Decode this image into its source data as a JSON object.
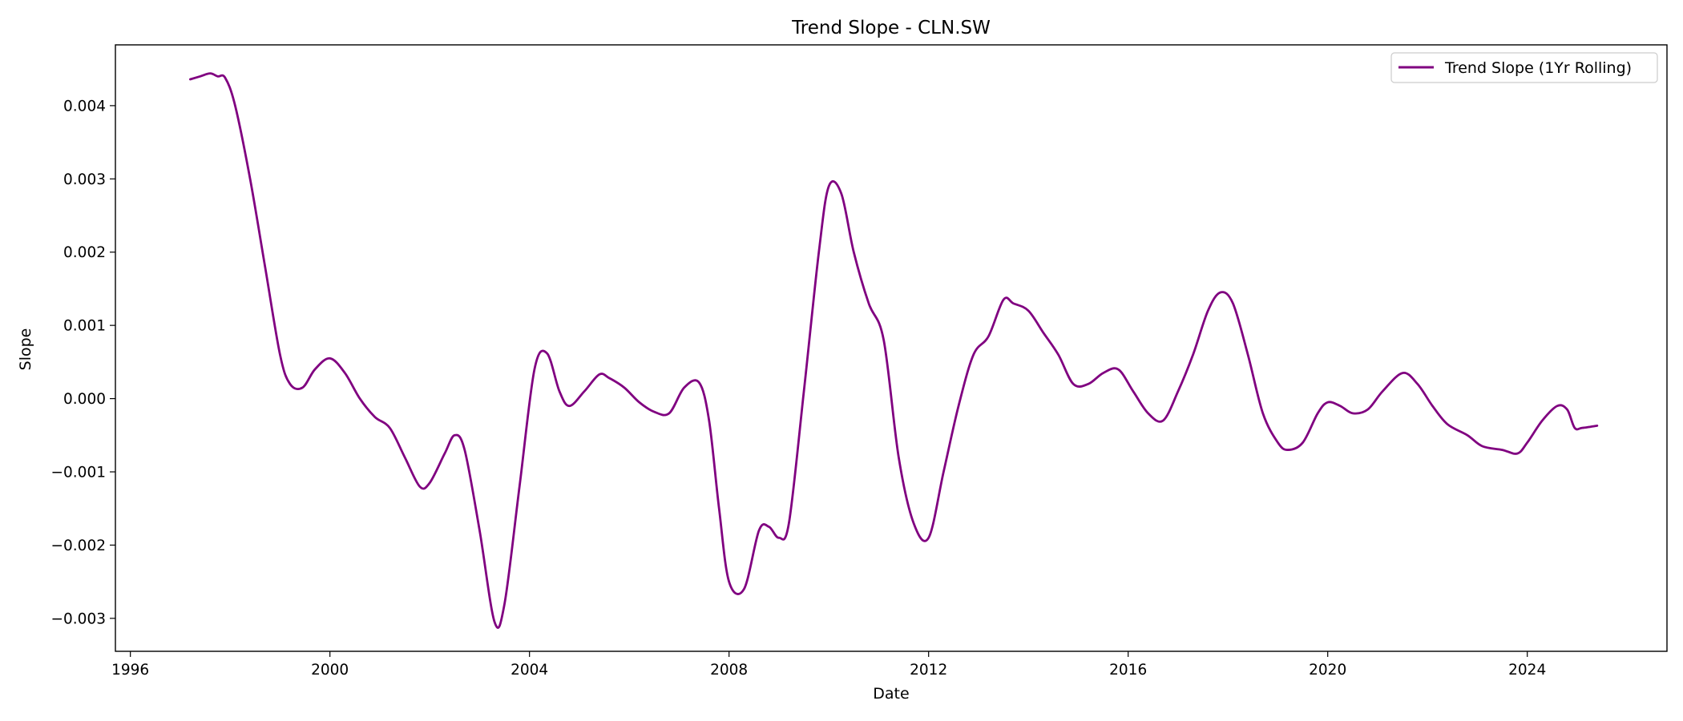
{
  "chart_data": {
    "type": "line",
    "title": "Trend Slope - CLN.SW",
    "xlabel": "Date",
    "ylabel": "Slope",
    "xlim": [
      1995.7,
      2026.8
    ],
    "ylim": [
      -0.00345,
      0.00483
    ],
    "x_ticks": [
      1996,
      2000,
      2004,
      2008,
      2012,
      2016,
      2020,
      2024
    ],
    "x_tick_labels": [
      "1996",
      "2000",
      "2004",
      "2008",
      "2012",
      "2016",
      "2020",
      "2024"
    ],
    "y_ticks": [
      -0.003,
      -0.002,
      -0.001,
      0.0,
      0.001,
      0.002,
      0.003,
      0.004
    ],
    "y_tick_labels": [
      "−0.003",
      "−0.002",
      "−0.001",
      "0.000",
      "0.001",
      "0.002",
      "0.003",
      "0.004"
    ],
    "grid": false,
    "legend": {
      "position": "top-right",
      "entries": [
        "Trend Slope (1Yr Rolling)"
      ]
    },
    "series": [
      {
        "name": "Trend Slope (1Yr Rolling)",
        "color": "#800080",
        "x": [
          1997.2,
          1997.4,
          1997.6,
          1997.75,
          1997.9,
          1998.1,
          1998.4,
          1998.7,
          1999.0,
          1999.2,
          1999.45,
          1999.7,
          2000.0,
          2000.3,
          2000.6,
          2000.9,
          2001.2,
          2001.5,
          2001.8,
          2002.0,
          2002.3,
          2002.5,
          2002.7,
          2003.0,
          2003.3,
          2003.5,
          2003.8,
          2004.1,
          2004.35,
          2004.6,
          2004.8,
          2005.1,
          2005.4,
          2005.6,
          2005.9,
          2006.2,
          2006.5,
          2006.8,
          2007.1,
          2007.4,
          2007.6,
          2007.8,
          2008.0,
          2008.3,
          2008.6,
          2008.8,
          2009.0,
          2009.2,
          2009.5,
          2009.8,
          2010.0,
          2010.25,
          2010.5,
          2010.8,
          2011.1,
          2011.4,
          2011.7,
          2012.0,
          2012.3,
          2012.6,
          2012.9,
          2013.2,
          2013.5,
          2013.7,
          2014.0,
          2014.3,
          2014.6,
          2014.9,
          2015.2,
          2015.5,
          2015.8,
          2016.1,
          2016.4,
          2016.7,
          2017.0,
          2017.3,
          2017.6,
          2017.85,
          2018.1,
          2018.4,
          2018.7,
          2019.0,
          2019.2,
          2019.5,
          2019.8,
          2020.0,
          2020.25,
          2020.5,
          2020.8,
          2021.1,
          2021.5,
          2021.8,
          2022.1,
          2022.4,
          2022.8,
          2023.1,
          2023.5,
          2023.8,
          2024.0,
          2024.3,
          2024.6,
          2024.8,
          2024.95,
          2025.1,
          2025.4
        ],
        "y": [
          0.00436,
          0.0044,
          0.00444,
          0.0044,
          0.00438,
          0.004,
          0.003,
          0.0018,
          0.0006,
          0.0002,
          0.00015,
          0.0004,
          0.00055,
          0.00035,
          0.0,
          -0.00025,
          -0.0004,
          -0.0008,
          -0.0012,
          -0.00115,
          -0.00075,
          -0.0005,
          -0.0007,
          -0.0018,
          -0.00305,
          -0.0028,
          -0.0012,
          0.0004,
          0.00062,
          0.0001,
          -0.0001,
          0.0001,
          0.00033,
          0.00028,
          0.00015,
          -5e-05,
          -0.00018,
          -0.0002,
          0.00015,
          0.00022,
          -0.0003,
          -0.0015,
          -0.0025,
          -0.0026,
          -0.0018,
          -0.00175,
          -0.0019,
          -0.0017,
          0.0001,
          0.002,
          0.0029,
          0.0028,
          0.002,
          0.0013,
          0.0008,
          -0.0008,
          -0.0017,
          -0.0019,
          -0.001,
          -0.0001,
          0.0006,
          0.00085,
          0.00135,
          0.0013,
          0.0012,
          0.0009,
          0.0006,
          0.0002,
          0.0002,
          0.00035,
          0.0004,
          0.0001,
          -0.0002,
          -0.0003,
          0.0001,
          0.0006,
          0.0012,
          0.00145,
          0.0013,
          0.0006,
          -0.0002,
          -0.0006,
          -0.0007,
          -0.0006,
          -0.0002,
          -5e-05,
          -0.0001,
          -0.0002,
          -0.00015,
          0.0001,
          0.00035,
          0.0002,
          -0.0001,
          -0.00035,
          -0.0005,
          -0.00065,
          -0.0007,
          -0.00075,
          -0.0006,
          -0.0003,
          -0.0001,
          -0.00015,
          -0.0004,
          -0.0004,
          -0.00037
        ]
      }
    ]
  }
}
